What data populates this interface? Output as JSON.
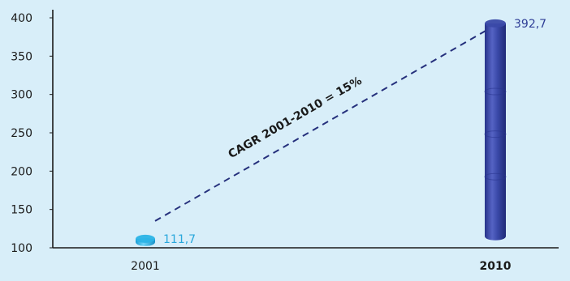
{
  "chart_data": {
    "type": "bar",
    "title": "",
    "xlabel": "",
    "ylabel": "",
    "categories": [
      "2001",
      "2010"
    ],
    "values": [
      111.7,
      392.7
    ],
    "value_labels": [
      "111,7",
      "392,7"
    ],
    "category_label_bold": [
      false,
      true
    ],
    "ylim": [
      100,
      400
    ],
    "yticks": [
      100,
      150,
      200,
      250,
      300,
      350,
      400
    ],
    "grid": false,
    "legend": "none",
    "annotation": {
      "text": "CAGR 2001-2010 = 15%",
      "style": "dashed trend line between bar tops"
    },
    "colors": {
      "background": "#d8eef9",
      "bar_2001": "#2bb3e6",
      "bar_2010": "#3a49a8",
      "label_2001": "#2aa8dc",
      "label_2010": "#2e3d96",
      "trend_line": "#25307c",
      "axis": "#1a1a1a",
      "text": "#1a1a1a"
    }
  }
}
